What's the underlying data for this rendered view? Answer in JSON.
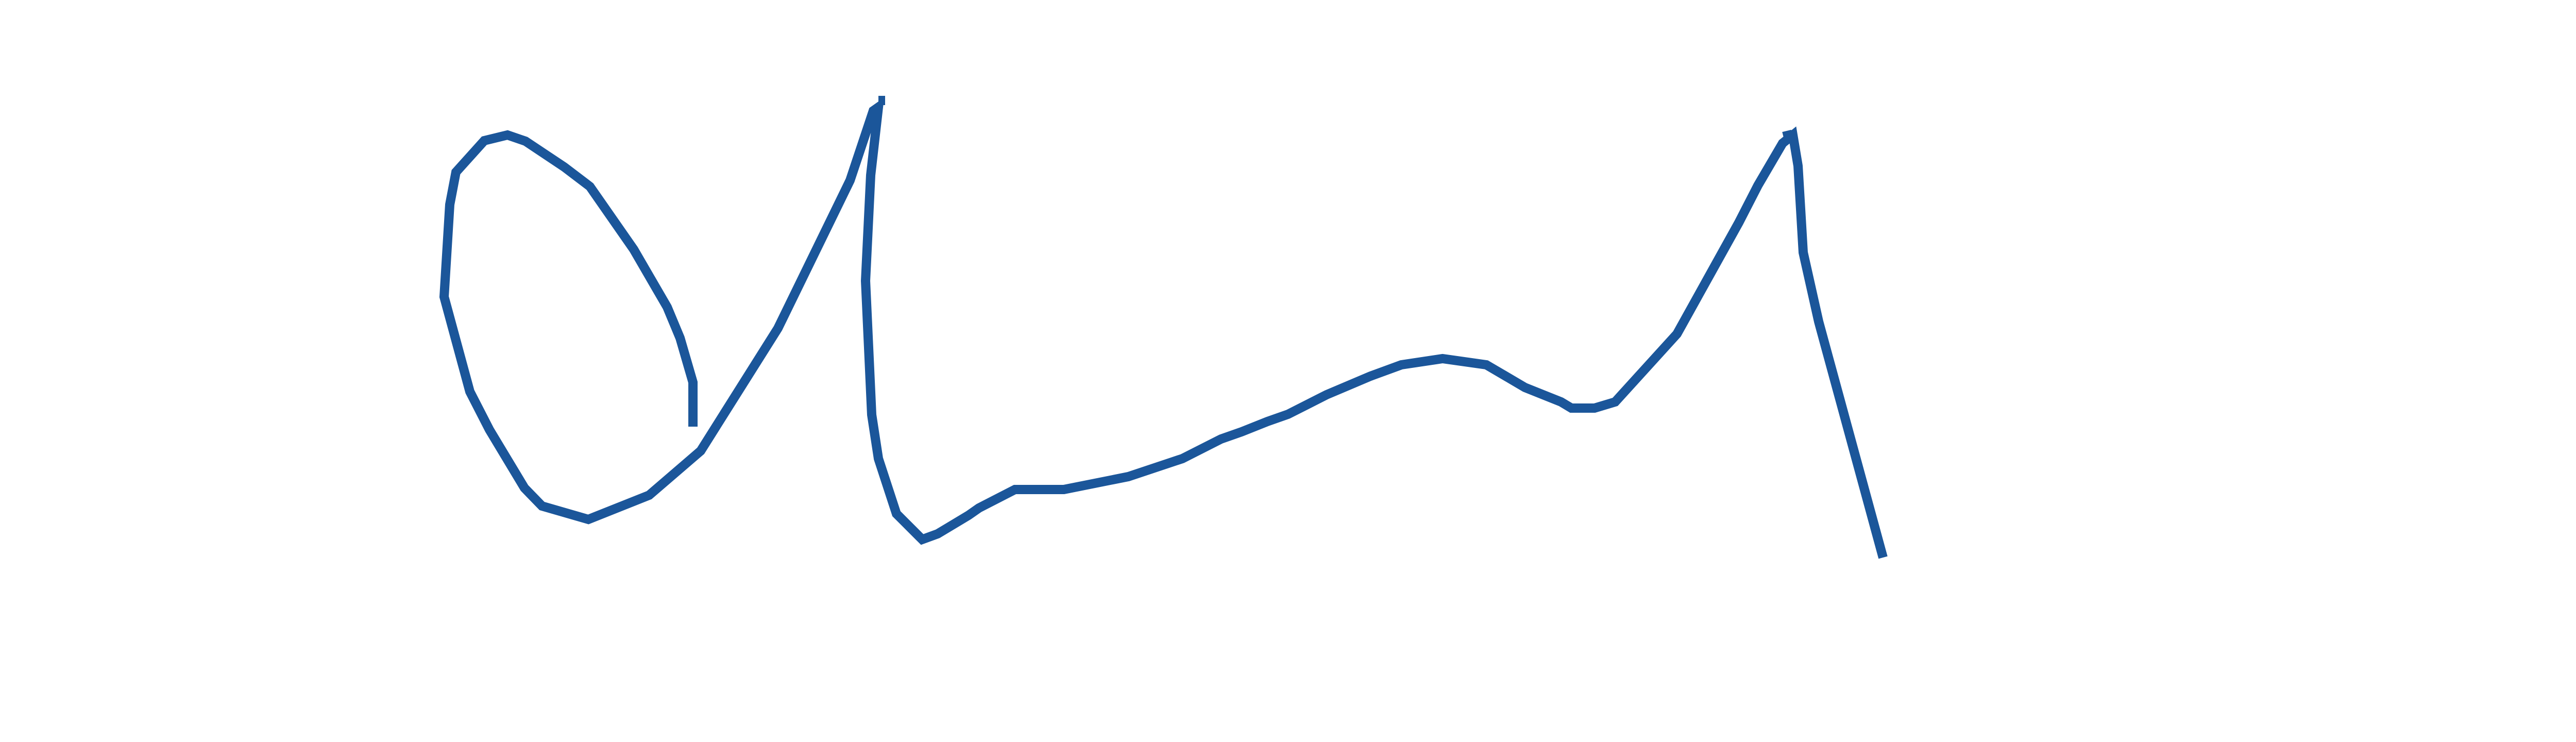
{
  "ink": {
    "color": "#1B569A",
    "background": "#FFFFFF"
  }
}
